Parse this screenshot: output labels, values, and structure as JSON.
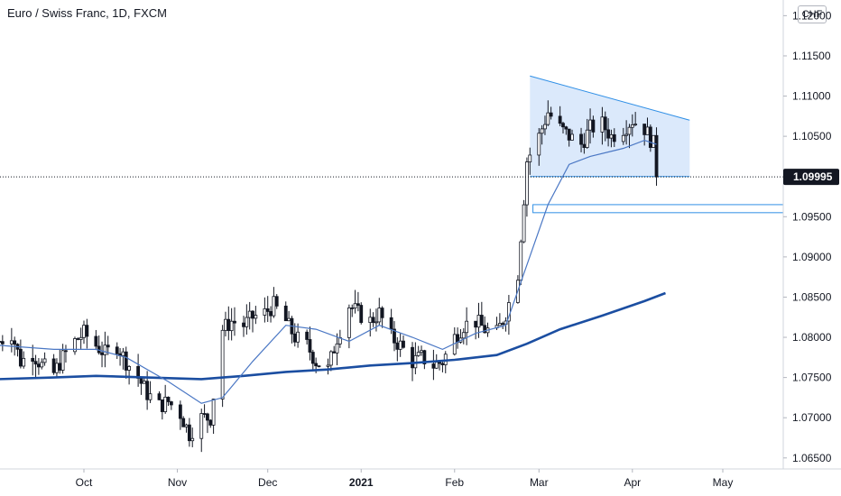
{
  "header": {
    "title": "Euro / Swiss Franc, 1D, FXCM",
    "currency_button": "CHF"
  },
  "colors": {
    "candle_up": "#ffffff",
    "candle_down": "#131722",
    "candle_border": "#131722",
    "ma_fast": "#4a77c4",
    "ma_slow": "#1b4ea1",
    "triangle_fill": "#dbe9fb",
    "triangle_line": "#2f8fe6",
    "box_line": "#2f8fe6",
    "price_label_bg": "#131722",
    "price_label_text": "#ffffff"
  },
  "chart_data": {
    "type": "candlestick",
    "symbol": "Euro / Swiss Franc, 1D, FXCM",
    "ylim": [
      1.0615,
      1.1215
    ],
    "y_ticks": [
      "1.12000",
      "1.11500",
      "1.11000",
      "1.10500",
      "1.10000",
      "1.09500",
      "1.09000",
      "1.08500",
      "1.08000",
      "1.07500",
      "1.07000",
      "1.06500"
    ],
    "x_ticks": [
      {
        "label": "Oct",
        "date": "2020-10-01",
        "bold": false
      },
      {
        "label": "Nov",
        "date": "2020-11-01",
        "bold": false
      },
      {
        "label": "Dec",
        "date": "2020-12-01",
        "bold": false
      },
      {
        "label": "2021",
        "date": "2021-01-01",
        "bold": true
      },
      {
        "label": "Feb",
        "date": "2021-02-01",
        "bold": false
      },
      {
        "label": "Mar",
        "date": "2021-03-01",
        "bold": false
      },
      {
        "label": "Apr",
        "date": "2021-04-01",
        "bold": false
      },
      {
        "label": "May",
        "date": "2021-05-01",
        "bold": false
      }
    ],
    "current_price": "1.09995",
    "current_price_value": 1.09995,
    "closes": [
      [
        "2020-09-03",
        1.0795
      ],
      [
        "2020-09-07",
        1.0805
      ],
      [
        "2020-09-10",
        1.077
      ],
      [
        "2020-09-14",
        1.078
      ],
      [
        "2020-09-17",
        1.0765
      ],
      [
        "2020-09-21",
        1.0755
      ],
      [
        "2020-09-24",
        1.0775
      ],
      [
        "2020-09-28",
        1.0795
      ],
      [
        "2020-10-01",
        1.0805
      ],
      [
        "2020-10-05",
        1.079
      ],
      [
        "2020-10-08",
        1.078
      ],
      [
        "2020-10-12",
        1.079
      ],
      [
        "2020-10-15",
        1.077
      ],
      [
        "2020-10-19",
        1.075
      ],
      [
        "2020-10-22",
        1.073
      ],
      [
        "2020-10-26",
        1.0715
      ],
      [
        "2020-10-29",
        1.072
      ],
      [
        "2020-11-02",
        1.0705
      ],
      [
        "2020-11-05",
        1.068
      ],
      [
        "2020-11-09",
        1.07
      ],
      [
        "2020-11-12",
        1.07
      ],
      [
        "2020-11-16",
        1.081
      ],
      [
        "2020-11-19",
        1.082
      ],
      [
        "2020-11-23",
        1.0815
      ],
      [
        "2020-11-26",
        1.0825
      ],
      [
        "2020-11-30",
        1.083
      ],
      [
        "2020-12-03",
        1.084
      ],
      [
        "2020-12-07",
        1.082
      ],
      [
        "2020-12-10",
        1.08
      ],
      [
        "2020-12-14",
        1.079
      ],
      [
        "2020-12-17",
        1.077
      ],
      [
        "2020-12-21",
        1.076
      ],
      [
        "2020-12-24",
        1.08
      ],
      [
        "2020-12-28",
        1.084
      ],
      [
        "2020-12-31",
        1.083
      ],
      [
        "2021-01-04",
        1.082
      ],
      [
        "2021-01-07",
        1.083
      ],
      [
        "2021-01-11",
        1.08
      ],
      [
        "2021-01-14",
        1.079
      ],
      [
        "2021-01-18",
        1.077
      ],
      [
        "2021-01-21",
        1.0775
      ],
      [
        "2021-01-25",
        1.0765
      ],
      [
        "2021-01-28",
        1.077
      ],
      [
        "2021-02-01",
        1.08
      ],
      [
        "2021-02-04",
        1.0815
      ],
      [
        "2021-02-08",
        1.082
      ],
      [
        "2021-02-11",
        1.081
      ],
      [
        "2021-02-15",
        1.0805
      ],
      [
        "2021-02-18",
        1.083
      ],
      [
        "2021-02-22",
        1.088
      ],
      [
        "2021-02-25",
        1.102
      ],
      [
        "2021-03-01",
        1.105
      ],
      [
        "2021-03-04",
        1.108
      ],
      [
        "2021-03-08",
        1.106
      ],
      [
        "2021-03-11",
        1.105
      ],
      [
        "2021-03-15",
        1.104
      ],
      [
        "2021-03-18",
        1.106
      ],
      [
        "2021-03-22",
        1.1065
      ],
      [
        "2021-03-25",
        1.105
      ],
      [
        "2021-03-29",
        1.106
      ],
      [
        "2021-04-01",
        1.107
      ],
      [
        "2021-04-05",
        1.106
      ],
      [
        "2021-04-08",
        1.104
      ],
      [
        "2021-04-09",
        1.1
      ]
    ],
    "ma_fast": [
      [
        "2020-09-03",
        1.079
      ],
      [
        "2020-09-21",
        1.0785
      ],
      [
        "2020-10-05",
        1.0785
      ],
      [
        "2020-10-15",
        1.0775
      ],
      [
        "2020-10-29",
        1.0745
      ],
      [
        "2020-11-09",
        1.0718
      ],
      [
        "2020-11-16",
        1.0725
      ],
      [
        "2020-11-26",
        1.077
      ],
      [
        "2020-12-07",
        1.0815
      ],
      [
        "2020-12-17",
        1.081
      ],
      [
        "2020-12-28",
        1.0795
      ],
      [
        "2021-01-07",
        1.0815
      ],
      [
        "2021-01-18",
        1.08
      ],
      [
        "2021-01-28",
        1.0785
      ],
      [
        "2021-02-08",
        1.0805
      ],
      [
        "2021-02-18",
        1.0815
      ],
      [
        "2021-02-25",
        1.089
      ],
      [
        "2021-03-04",
        1.0965
      ],
      [
        "2021-03-11",
        1.1015
      ],
      [
        "2021-03-18",
        1.1025
      ],
      [
        "2021-03-29",
        1.1035
      ],
      [
        "2021-04-05",
        1.1045
      ],
      [
        "2021-04-09",
        1.104
      ]
    ],
    "ma_slow": [
      [
        "2020-09-03",
        1.0748
      ],
      [
        "2020-09-21",
        1.075
      ],
      [
        "2020-10-05",
        1.0752
      ],
      [
        "2020-10-22",
        1.075
      ],
      [
        "2020-11-09",
        1.0748
      ],
      [
        "2020-11-23",
        1.0752
      ],
      [
        "2020-12-07",
        1.0757
      ],
      [
        "2020-12-21",
        1.076
      ],
      [
        "2021-01-04",
        1.0765
      ],
      [
        "2021-01-18",
        1.0768
      ],
      [
        "2021-02-01",
        1.0772
      ],
      [
        "2021-02-15",
        1.0778
      ],
      [
        "2021-02-25",
        1.0792
      ],
      [
        "2021-03-08",
        1.081
      ],
      [
        "2021-03-22",
        1.0827
      ],
      [
        "2021-04-05",
        1.0845
      ],
      [
        "2021-04-12",
        1.0855
      ]
    ],
    "annotations": [
      {
        "kind": "triangle",
        "points": [
          [
            "2021-02-26",
            1.1125
          ],
          [
            "2021-04-20",
            1.107
          ],
          [
            "2021-04-20",
            1.1
          ],
          [
            "2021-02-26",
            1.1
          ]
        ]
      },
      {
        "kind": "support_box",
        "from": "2021-02-27",
        "y_top": 1.0965,
        "y_bottom": 1.0955
      },
      {
        "kind": "price_line",
        "y": 1.09995
      }
    ]
  }
}
